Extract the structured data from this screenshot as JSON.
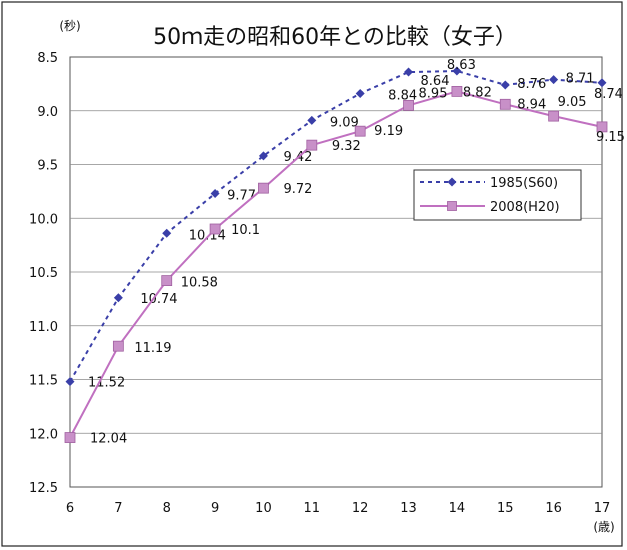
{
  "chart_data": {
    "type": "line",
    "title": "50ｍ走の昭和60年との比較（女子）",
    "ylabel": "(秒)",
    "xlabel": "(歳)",
    "x": [
      6,
      7,
      8,
      9,
      10,
      11,
      12,
      13,
      14,
      15,
      16,
      17
    ],
    "ylim": [
      8.5,
      12.5
    ],
    "y_inverted": true,
    "y_ticks": [
      "8.5",
      "9.0",
      "9.5",
      "10.0",
      "10.5",
      "11.0",
      "11.5",
      "12.0",
      "12.5"
    ],
    "x_ticks": [
      "6",
      "7",
      "8",
      "9",
      "10",
      "11",
      "12",
      "13",
      "14",
      "15",
      "16",
      "17"
    ],
    "grid": true,
    "legend_position": "right",
    "series": [
      {
        "name": "1985(S60)",
        "values": [
          11.52,
          10.74,
          10.14,
          9.77,
          9.42,
          9.09,
          8.84,
          8.64,
          8.63,
          8.76,
          8.71,
          8.74
        ],
        "labels": [
          "11.52",
          "10.74",
          "10.14",
          "9.77",
          "9.42",
          "9.09",
          "8.84",
          "8.64",
          "8.63",
          "8.76",
          "8.71",
          "8.74"
        ],
        "color": "#3a3fa8",
        "line_style": "dotted",
        "marker": "diamond"
      },
      {
        "name": "2008(H20)",
        "values": [
          12.04,
          11.19,
          10.58,
          10.1,
          9.72,
          9.32,
          9.19,
          8.95,
          8.82,
          8.94,
          9.05,
          9.15
        ],
        "labels": [
          "12.04",
          "11.19",
          "10.58",
          "10.1",
          "9.72",
          "9.32",
          "9.19",
          "8.95",
          "8.82",
          "8.94",
          "9.05",
          "9.15"
        ],
        "color": "#c070c0",
        "line_style": "solid",
        "marker": "square"
      }
    ]
  }
}
